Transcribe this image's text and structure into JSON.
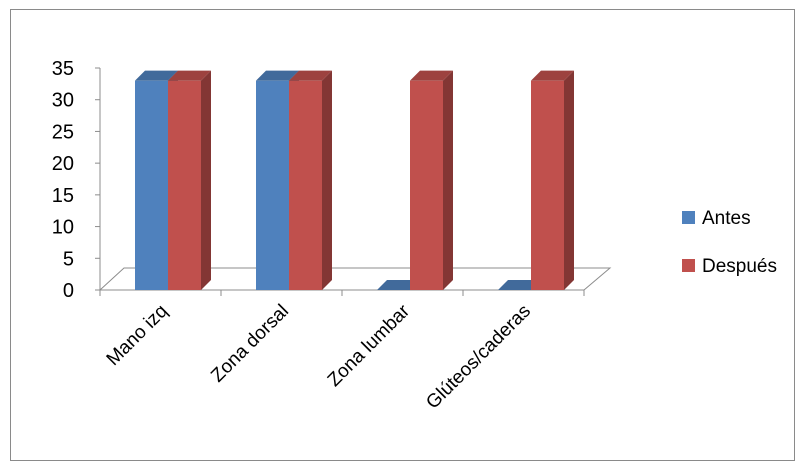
{
  "chart_data": {
    "type": "bar",
    "title": "",
    "xlabel": "",
    "ylabel": "",
    "categories": [
      "Mano izq",
      "Zona dorsal",
      "Zona lumbar",
      "Glúteos/caderas"
    ],
    "series": [
      {
        "name": "Antes",
        "values": [
          33,
          33,
          0,
          0
        ],
        "color": "#4F81BD"
      },
      {
        "name": "Después",
        "values": [
          33,
          33,
          33,
          33
        ],
        "color": "#C0504D"
      }
    ],
    "ylim": [
      0,
      35
    ],
    "yticks": [
      "0",
      "5",
      "10",
      "15",
      "20",
      "25",
      "30",
      "35"
    ],
    "legend_position": "right",
    "grid": false,
    "style": "3d-clustered-column"
  }
}
